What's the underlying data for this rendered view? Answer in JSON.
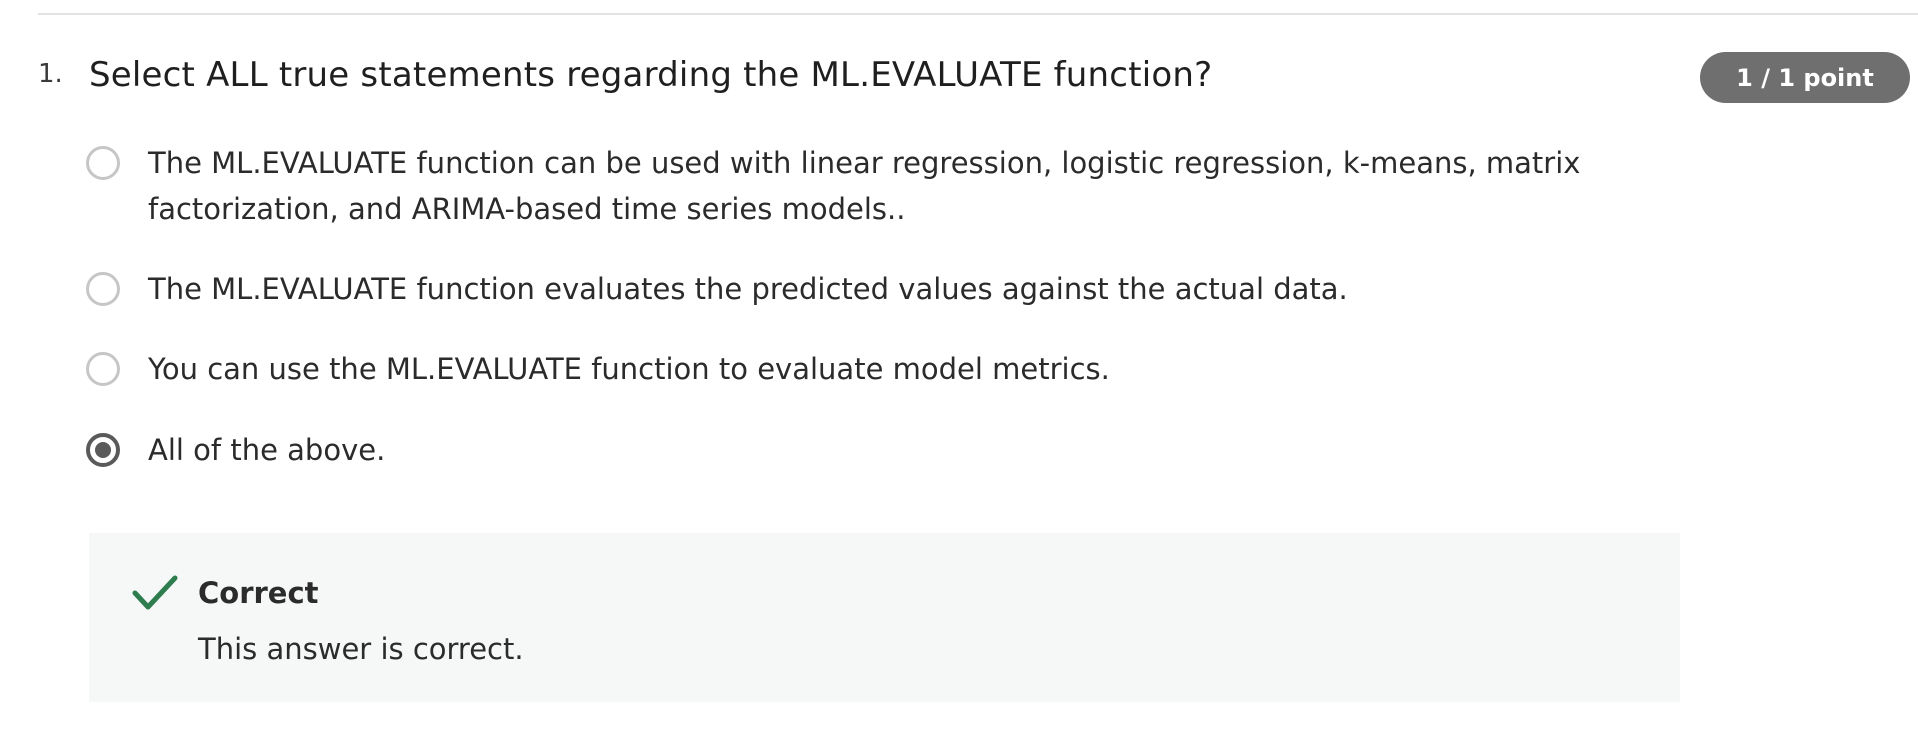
{
  "question": {
    "number": "1.",
    "text": "Select ALL true statements regarding the ML.EVALUATE function?",
    "score": "1 / 1 point"
  },
  "options": [
    {
      "label": "The ML.EVALUATE function can be used with linear regression, logistic regression, k-means, matrix factorization, and ARIMA-based time series models..",
      "selected": false
    },
    {
      "label": "The ML.EVALUATE function evaluates the predicted values against the actual data.",
      "selected": false
    },
    {
      "label": "You can use the ML.EVALUATE function to evaluate model metrics.",
      "selected": false
    },
    {
      "label": "All of the above.",
      "selected": true
    }
  ],
  "feedback": {
    "icon": "checkmark-icon",
    "title": "Correct",
    "text": "This answer is correct.",
    "accent_color": "#2e7d4f",
    "background_color": "#f6f8f7"
  },
  "colors": {
    "badge_background": "#6f6f6f",
    "radio_selected": "#5a5a5a",
    "radio_unselected": "#c6c6c6"
  }
}
